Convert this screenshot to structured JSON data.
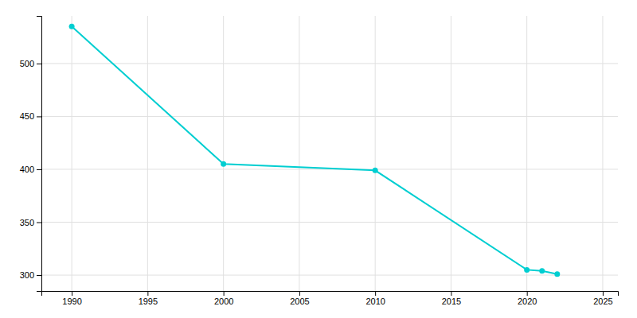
{
  "chart_data": {
    "type": "line",
    "x": [
      1990,
      2000,
      2010,
      2020,
      2021,
      2022
    ],
    "values": [
      535,
      405,
      399,
      305,
      304,
      301
    ],
    "color": "#00CED1",
    "marker": "circle",
    "xlim": [
      1988,
      2026
    ],
    "ylim": [
      285,
      545
    ],
    "xticks": [
      1990,
      1995,
      2000,
      2005,
      2010,
      2015,
      2020,
      2025
    ],
    "yticks": [
      300,
      350,
      400,
      450,
      500
    ],
    "grid": true
  }
}
